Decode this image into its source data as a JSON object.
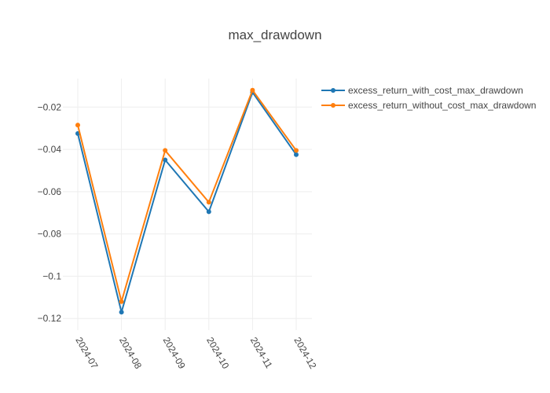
{
  "chart_data": {
    "type": "line",
    "title": "max_drawdown",
    "xlabel": "",
    "ylabel": "",
    "categories": [
      "2024-07",
      "2024-08",
      "2024-09",
      "2024-10",
      "2024-11",
      "2024-12"
    ],
    "ylim": [
      -0.1255,
      -0.0065
    ],
    "yticks": [
      -0.12,
      -0.1,
      -0.08,
      -0.06,
      -0.04,
      -0.02
    ],
    "ytick_labels": [
      "−0.12",
      "−0.1",
      "−0.08",
      "−0.06",
      "−0.04",
      "−0.02"
    ],
    "grid": true,
    "legend_position": "top-right",
    "series": [
      {
        "name": "excess_return_with_cost_max_drawdown",
        "color": "#1f77b4",
        "values": [
          -0.0325,
          -0.117,
          -0.045,
          -0.0695,
          -0.013,
          -0.0425
        ]
      },
      {
        "name": "excess_return_without_cost_max_drawdown",
        "color": "#ff7f0e",
        "values": [
          -0.0285,
          -0.112,
          -0.0405,
          -0.065,
          -0.012,
          -0.0405
        ]
      }
    ]
  }
}
